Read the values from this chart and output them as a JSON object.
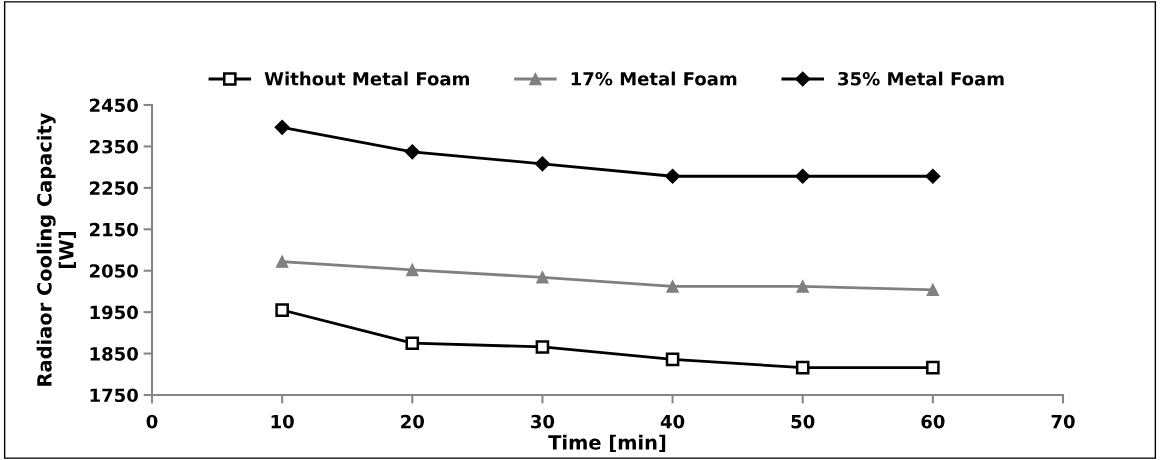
{
  "chart_data": {
    "type": "line",
    "xlabel": "Time [min]",
    "ylabel": "Radiaor Cooling Capacity\n[W]",
    "x": [
      10,
      20,
      30,
      40,
      50,
      60
    ],
    "series": [
      {
        "name": "Without Metal Foam",
        "color": "#000000",
        "marker": "square",
        "values": [
          1955,
          1875,
          1866,
          1836,
          1816,
          1816
        ]
      },
      {
        "name": "17% Metal Foam",
        "color": "#808080",
        "marker": "triangle",
        "values": [
          2072,
          2052,
          2034,
          2012,
          2012,
          2004
        ]
      },
      {
        "name": "35% Metal Foam",
        "color": "#000000",
        "marker": "diamond",
        "values": [
          2396,
          2337,
          2308,
          2278,
          2278,
          2278
        ]
      }
    ],
    "xlim": [
      0,
      70
    ],
    "xticks": [
      0,
      10,
      20,
      30,
      40,
      50,
      60,
      70
    ],
    "ylim": [
      1750,
      2450
    ],
    "yticks": [
      1750,
      1850,
      1950,
      2050,
      2150,
      2250,
      2350,
      2450
    ],
    "grid": false,
    "legend": "top",
    "line_style": "solid"
  }
}
